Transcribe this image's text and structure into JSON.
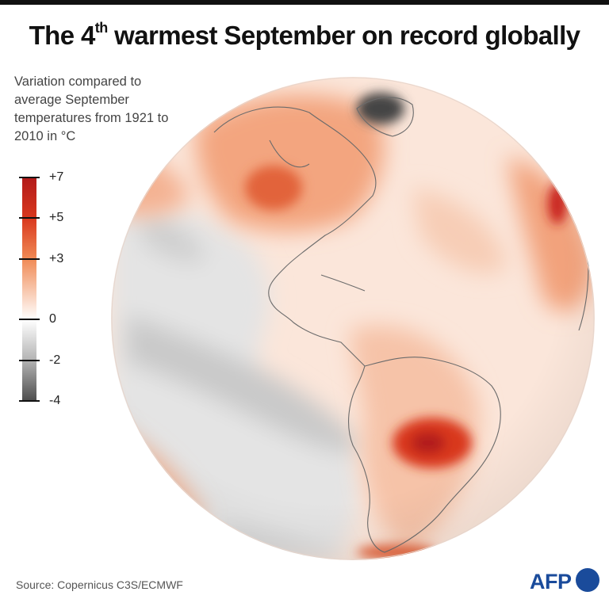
{
  "header": {
    "title_prefix": "The 4",
    "title_sup": "th",
    "title_suffix": " warmest September on record globally"
  },
  "subtitle": "Variation compared to average September temperatures from 1921 to 2010 in °C",
  "legend": {
    "ticks": [
      {
        "label": "+7",
        "value": 7
      },
      {
        "label": "+5",
        "value": 5
      },
      {
        "label": "+3",
        "value": 3
      },
      {
        "label": "0",
        "value": 0
      },
      {
        "label": "-2",
        "value": -2
      },
      {
        "label": "-4",
        "value": -4
      }
    ],
    "colors": {
      "plus7": "#b21a1a",
      "plus5": "#d9381e",
      "plus3": "#f08a55",
      "zero": "#ffffff",
      "minus2": "#b3b3b3",
      "minus4": "#4d4d4d"
    }
  },
  "map": {
    "projection": "orthographic globe centered on the Americas",
    "hotspots": [
      "South America (Paraguay / southern Brazil)",
      "western United States and Canada",
      "northwestern Africa / Iberia"
    ],
    "coldspots": [
      "eastern tropical Pacific",
      "Greenland"
    ]
  },
  "footer": {
    "source": "Source: Copernicus C3S/ECMWF",
    "logo_text": "AFP"
  }
}
